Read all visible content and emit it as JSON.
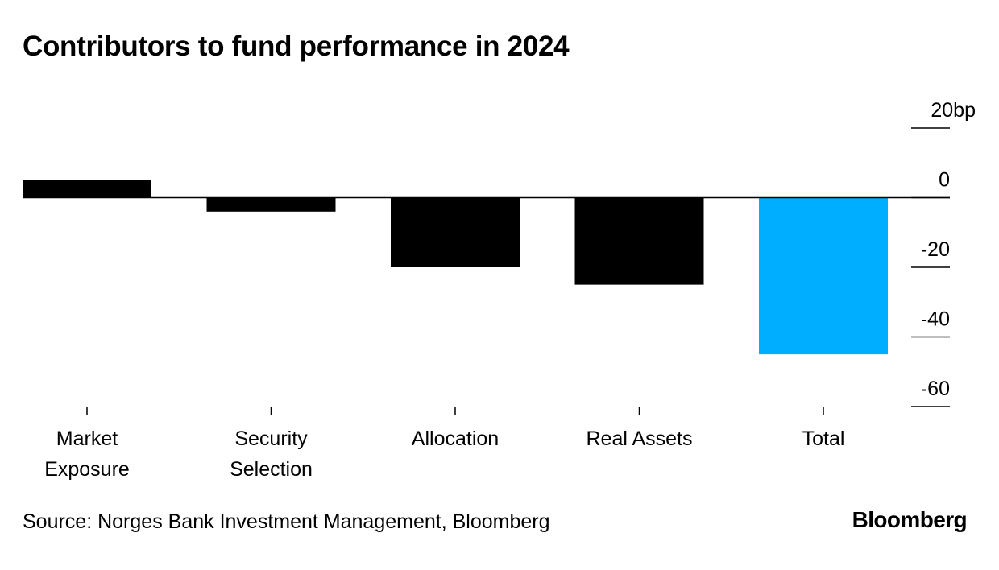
{
  "title": "Contributors to fund performance in 2024",
  "source": "Source: Norges Bank Investment Management, Bloomberg",
  "brand": "Bloomberg",
  "colors": {
    "bar": "#000000",
    "total_bar": "#00AEFF",
    "axis": "#000000",
    "text": "#000000"
  },
  "chart_data": {
    "type": "bar",
    "title": "Contributors to fund performance in 2024",
    "categories": [
      [
        "Market",
        "Exposure"
      ],
      [
        "Security",
        "Selection"
      ],
      [
        "Allocation"
      ],
      [
        "Real Assets"
      ],
      [
        "Total"
      ]
    ],
    "values": [
      5,
      -4,
      -20,
      -25,
      -45
    ],
    "highlight_index": 4,
    "ylim": [
      -60,
      20
    ],
    "yticks": [
      20,
      0,
      -20,
      -40,
      -60
    ],
    "ytick_labels": [
      "20bp",
      "0",
      "-20",
      "-40",
      "-60"
    ],
    "yaxis_position": "right",
    "xlabel": "",
    "ylabel": "bp"
  }
}
